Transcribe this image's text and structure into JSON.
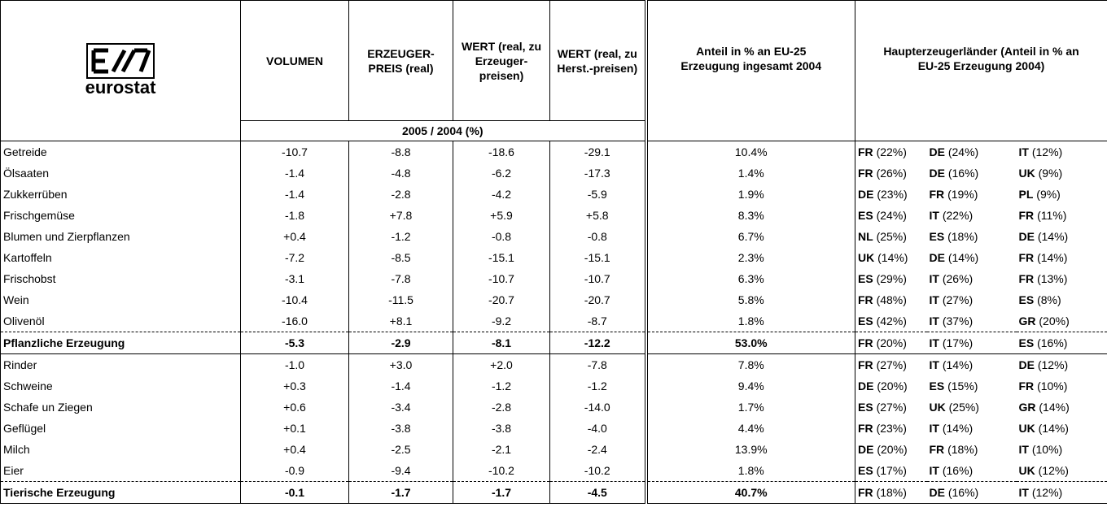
{
  "header": {
    "logo": "eurostat",
    "columns": [
      [
        "VOLUMEN"
      ],
      [
        "ERZEUGER-",
        "PREIS (real)"
      ],
      [
        "WERT (real, zu",
        "Erzeuger-",
        "preisen)"
      ],
      [
        "WERT (real, zu",
        "Herst.-preisen)"
      ],
      [
        "Anteil in % an EU-25",
        "Erzeugung ingesamt 2004"
      ],
      [
        "Haupterzeugerländer (Anteil in % an",
        "EU-25 Erzeugung 2004)"
      ]
    ],
    "period": "2005 / 2004 (%)"
  },
  "groups": [
    {
      "rows": [
        {
          "label": "Getreide",
          "values": [
            "-10.7",
            "-8.8",
            "-18.6",
            "-29.1"
          ],
          "share": "10.4%",
          "producers": [
            {
              "code": "FR",
              "share": "(22%)"
            },
            {
              "code": "DE",
              "share": "(24%)"
            },
            {
              "code": "IT",
              "share": "(12%)"
            }
          ]
        },
        {
          "label": "Ölsaaten",
          "values": [
            "-1.4",
            "-4.8",
            "-6.2",
            "-17.3"
          ],
          "share": "1.4%",
          "producers": [
            {
              "code": "FR",
              "share": "(26%)"
            },
            {
              "code": "DE",
              "share": "(16%)"
            },
            {
              "code": "UK",
              "share": "(9%)"
            }
          ]
        },
        {
          "label": "Zukkerrüben",
          "values": [
            "-1.4",
            "-2.8",
            "-4.2",
            "-5.9"
          ],
          "share": "1.9%",
          "producers": [
            {
              "code": "DE",
              "share": "(23%)"
            },
            {
              "code": "FR",
              "share": "(19%)"
            },
            {
              "code": "PL",
              "share": "(9%)"
            }
          ]
        },
        {
          "label": "Frischgemüse",
          "values": [
            "-1.8",
            "+7.8",
            "+5.9",
            "+5.8"
          ],
          "share": "8.3%",
          "producers": [
            {
              "code": "ES",
              "share": "(24%)"
            },
            {
              "code": "IT",
              "share": "(22%)"
            },
            {
              "code": "FR",
              "share": "(11%)"
            }
          ]
        },
        {
          "label": "Blumen und Zierpflanzen",
          "values": [
            "+0.4",
            "-1.2",
            "-0.8",
            "-0.8"
          ],
          "share": "6.7%",
          "producers": [
            {
              "code": "NL",
              "share": "(25%)"
            },
            {
              "code": "ES",
              "share": "(18%)"
            },
            {
              "code": "DE",
              "share": "(14%)"
            }
          ]
        },
        {
          "label": "Kartoffeln",
          "values": [
            "-7.2",
            "-8.5",
            "-15.1",
            "-15.1"
          ],
          "share": "2.3%",
          "producers": [
            {
              "code": "UK",
              "share": "(14%)"
            },
            {
              "code": "DE",
              "share": "(14%)"
            },
            {
              "code": "FR",
              "share": "(14%)"
            }
          ]
        },
        {
          "label": "Frischobst",
          "values": [
            "-3.1",
            "-7.8",
            "-10.7",
            "-10.7"
          ],
          "share": "6.3%",
          "producers": [
            {
              "code": "ES",
              "share": "(29%)"
            },
            {
              "code": "IT",
              "share": "(26%)"
            },
            {
              "code": "FR",
              "share": "(13%)"
            }
          ]
        },
        {
          "label": "Wein",
          "values": [
            "-10.4",
            "-11.5",
            "-20.7",
            "-20.7"
          ],
          "share": "5.8%",
          "producers": [
            {
              "code": "FR",
              "share": "(48%)"
            },
            {
              "code": "IT",
              "share": "(27%)"
            },
            {
              "code": "ES",
              "share": "(8%)"
            }
          ]
        },
        {
          "label": "Olivenöl",
          "values": [
            "-16.0",
            "+8.1",
            "-9.2",
            "-8.7"
          ],
          "share": "1.8%",
          "producers": [
            {
              "code": "ES",
              "share": "(42%)"
            },
            {
              "code": "IT",
              "share": "(37%)"
            },
            {
              "code": "GR",
              "share": "(20%)"
            }
          ]
        }
      ],
      "total": {
        "label": "Pflanzliche Erzeugung",
        "values": [
          "-5.3",
          "-2.9",
          "-8.1",
          "-12.2"
        ],
        "share": "53.0%",
        "producers": [
          {
            "code": "FR",
            "share": "(20%)"
          },
          {
            "code": "IT",
            "share": "(17%)"
          },
          {
            "code": "ES",
            "share": "(16%)"
          }
        ]
      }
    },
    {
      "rows": [
        {
          "label": "Rinder",
          "values": [
            "-1.0",
            "+3.0",
            "+2.0",
            "-7.8"
          ],
          "share": "7.8%",
          "producers": [
            {
              "code": "FR",
              "share": "(27%)"
            },
            {
              "code": "IT",
              "share": "(14%)"
            },
            {
              "code": "DE",
              "share": "(12%)"
            }
          ]
        },
        {
          "label": "Schweine",
          "values": [
            "+0.3",
            "-1.4",
            "-1.2",
            "-1.2"
          ],
          "share": "9.4%",
          "producers": [
            {
              "code": "DE",
              "share": "(20%)"
            },
            {
              "code": "ES",
              "share": "(15%)"
            },
            {
              "code": "FR",
              "share": "(10%)"
            }
          ]
        },
        {
          "label": "Schafe un Ziegen",
          "values": [
            "+0.6",
            "-3.4",
            "-2.8",
            "-14.0"
          ],
          "share": "1.7%",
          "producers": [
            {
              "code": "ES",
              "share": "(27%)"
            },
            {
              "code": "UK",
              "share": "(25%)"
            },
            {
              "code": "GR",
              "share": "(14%)"
            }
          ]
        },
        {
          "label": "Geflügel",
          "values": [
            "+0.1",
            "-3.8",
            "-3.8",
            "-4.0"
          ],
          "share": "4.4%",
          "producers": [
            {
              "code": "FR",
              "share": "(23%)"
            },
            {
              "code": "IT",
              "share": "(14%)"
            },
            {
              "code": "UK",
              "share": "(14%)"
            }
          ]
        },
        {
          "label": "Milch",
          "values": [
            "+0.4",
            "-2.5",
            "-2.1",
            "-2.4"
          ],
          "share": "13.9%",
          "producers": [
            {
              "code": "DE",
              "share": "(20%)"
            },
            {
              "code": "FR",
              "share": "(18%)"
            },
            {
              "code": "IT",
              "share": "(10%)"
            }
          ]
        },
        {
          "label": "Eier",
          "values": [
            "-0.9",
            "-9.4",
            "-10.2",
            "-10.2"
          ],
          "share": "1.8%",
          "producers": [
            {
              "code": "ES",
              "share": "(17%)"
            },
            {
              "code": "IT",
              "share": "(16%)"
            },
            {
              "code": "UK",
              "share": "(12%)"
            }
          ]
        }
      ],
      "total": {
        "label": "Tierische Erzeugung",
        "values": [
          "-0.1",
          "-1.7",
          "-1.7",
          "-4.5"
        ],
        "share": "40.7%",
        "producers": [
          {
            "code": "FR",
            "share": "(18%)"
          },
          {
            "code": "DE",
            "share": "(16%)"
          },
          {
            "code": "IT",
            "share": "(12%)"
          }
        ]
      }
    }
  ]
}
